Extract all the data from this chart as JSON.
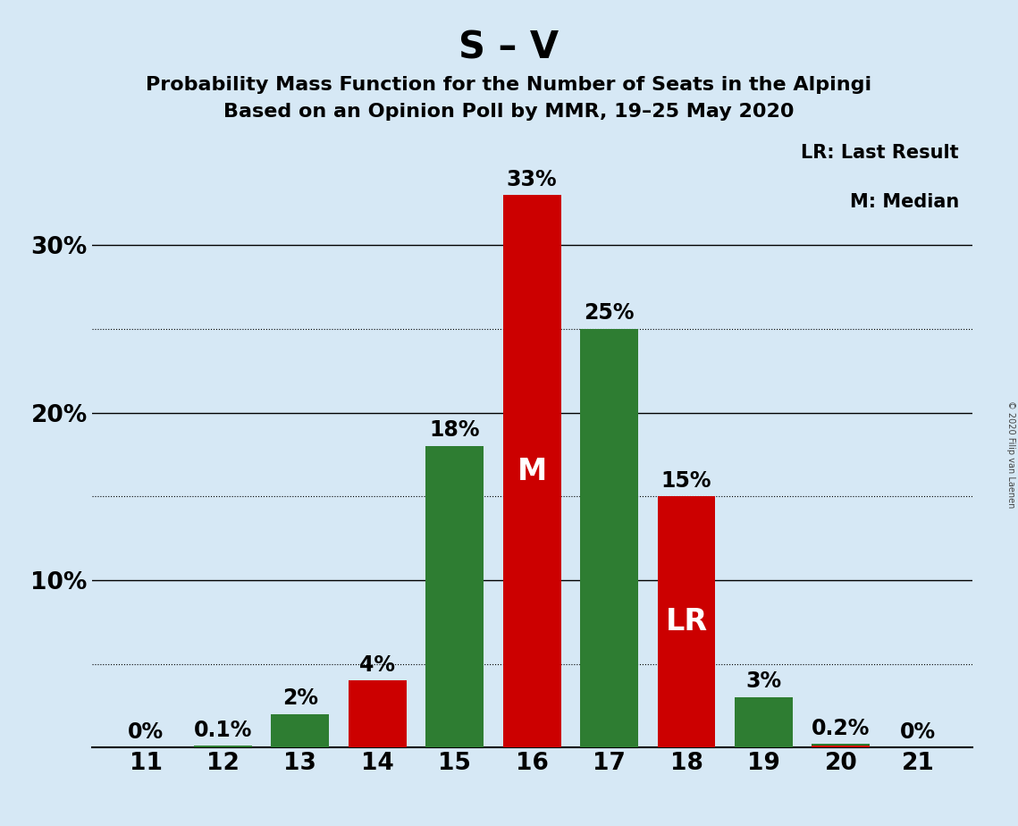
{
  "title": "S – V",
  "subtitle1": "Probability Mass Function for the Number of Seats in the Alpingi",
  "subtitle2": "Based on an Opinion Poll by MMR, 19–25 May 2020",
  "copyright": "© 2020 Filip van Laenen",
  "legend_lr": "LR: Last Result",
  "legend_m": "M: Median",
  "seats": [
    11,
    12,
    13,
    14,
    15,
    16,
    17,
    18,
    19,
    20,
    21
  ],
  "green_values": [
    0.0,
    0.001,
    0.02,
    0.0,
    0.18,
    0.0,
    0.25,
    0.0,
    0.03,
    0.002,
    0.0
  ],
  "red_values": [
    0.0,
    0.0,
    0.0,
    0.04,
    0.0,
    0.33,
    0.0,
    0.15,
    0.0,
    0.001,
    0.0
  ],
  "green_labels": [
    "0%",
    "0.1%",
    "2%",
    "",
    "18%",
    "",
    "25%",
    "",
    "3%",
    "0.2%",
    "0%"
  ],
  "red_labels": [
    "",
    "",
    "",
    "4%",
    "",
    "33%",
    "",
    "15%",
    "",
    "",
    ""
  ],
  "show_zero_label_seats": [
    11,
    21
  ],
  "green_color": "#2e7d32",
  "red_color": "#cc0000",
  "bg_color": "#d6e8f5",
  "median_seat": 16,
  "lr_seat": 18,
  "yticks_major": [
    0.0,
    0.1,
    0.2,
    0.3
  ],
  "ytick_major_labels": [
    "",
    "10%",
    "20%",
    "30%"
  ],
  "yticks_dotted": [
    0.05,
    0.15,
    0.25
  ],
  "ylim": [
    0,
    0.37
  ],
  "title_fontsize": 30,
  "subtitle_fontsize": 16,
  "label_fontsize": 17,
  "tick_fontsize": 19,
  "inner_label_fontsize": 24,
  "bar_width": 0.75
}
